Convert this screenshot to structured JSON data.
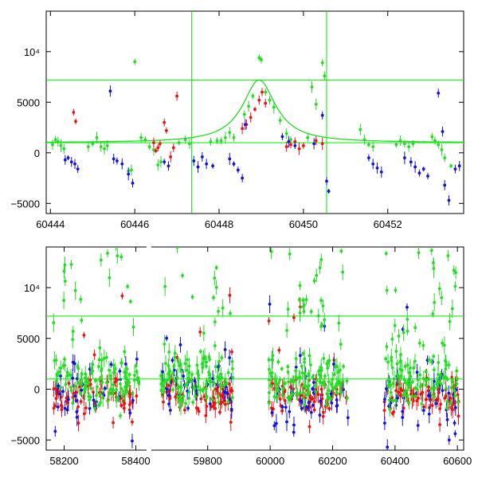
{
  "colors": {
    "background": "#ffffff",
    "frame": "#000000",
    "reference_lines": "#00ee00",
    "model_curve": "#22dd22",
    "series": {
      "red": "#ee1111",
      "green": "#22dd22",
      "blue": "#1111dd"
    }
  },
  "chart_data": [
    {
      "type": "scatter",
      "title": "",
      "xlabel": "",
      "ylabel": "",
      "xlim": [
        60443.9,
        60453.8
      ],
      "ylim": [
        -6000,
        14000
      ],
      "x_ticks": [
        60444,
        60446,
        60448,
        60450,
        60452
      ],
      "x_tick_labels": [
        "60444",
        "60446",
        "60448",
        "60450",
        "60452"
      ],
      "y_ticks": [
        -5000,
        0,
        5000,
        10000
      ],
      "y_tick_labels": [
        "−5000",
        "0",
        "5000",
        "10⁴"
      ],
      "horizontal_lines": [
        1000,
        7200
      ],
      "vertical_lines": [
        60447.35,
        60450.55
      ],
      "grid": false,
      "legend": "none",
      "model_curve": {
        "shape": "single-lens magnification peak",
        "t0": 60448.95,
        "baseline": 1000,
        "peak": 7200,
        "timescale": 0.48
      },
      "series": [
        {
          "color": "green",
          "points": [
            [
              60444.05,
              800
            ],
            [
              60444.12,
              1300
            ],
            [
              60444.18,
              1100
            ],
            [
              60444.25,
              700
            ],
            [
              60444.32,
              400
            ],
            [
              60444.9,
              600
            ],
            [
              60445.0,
              900
            ],
            [
              60445.1,
              1500
            ],
            [
              60445.2,
              600
            ],
            [
              60445.28,
              400
            ],
            [
              60445.35,
              700
            ],
            [
              60445.85,
              -1800
            ],
            [
              60445.92,
              -1700
            ],
            [
              60446.0,
              9000
            ],
            [
              60446.15,
              1500
            ],
            [
              60446.25,
              1300
            ],
            [
              60446.35,
              600
            ],
            [
              60446.45,
              300
            ],
            [
              60446.55,
              -1200
            ],
            [
              60446.62,
              -900
            ],
            [
              60447.05,
              1000
            ],
            [
              60447.2,
              1300
            ],
            [
              60447.3,
              900
            ],
            [
              60447.8,
              1100
            ],
            [
              60447.95,
              1200
            ],
            [
              60448.05,
              1200
            ],
            [
              60448.15,
              1500
            ],
            [
              60448.25,
              2000
            ],
            [
              60448.35,
              1500
            ],
            [
              60448.6,
              3800
            ],
            [
              60448.7,
              4600
            ],
            [
              60448.8,
              5600
            ],
            [
              60448.95,
              9400
            ],
            [
              60449.0,
              9200
            ],
            [
              60449.1,
              6000
            ],
            [
              60449.2,
              5200
            ],
            [
              60449.3,
              4500
            ],
            [
              60449.45,
              3200
            ],
            [
              60449.6,
              1900
            ],
            [
              60449.7,
              1300
            ],
            [
              60450.1,
              1500
            ],
            [
              60450.2,
              6500
            ],
            [
              60450.3,
              4800
            ],
            [
              60450.45,
              8900
            ],
            [
              60450.5,
              7600
            ],
            [
              60451.35,
              2300
            ],
            [
              60451.45,
              1300
            ],
            [
              60451.55,
              800
            ],
            [
              60451.65,
              600
            ],
            [
              60452.2,
              800
            ],
            [
              60452.3,
              1200
            ],
            [
              60452.4,
              900
            ],
            [
              60452.5,
              600
            ],
            [
              60452.6,
              900
            ],
            [
              60453.05,
              1600
            ],
            [
              60453.12,
              1200
            ],
            [
              60453.2,
              800
            ],
            [
              60453.28,
              300
            ],
            [
              60453.35,
              -500
            ],
            [
              60453.5,
              -1300
            ]
          ]
        },
        {
          "color": "red",
          "points": [
            [
              60444.55,
              4000
            ],
            [
              60444.6,
              3100
            ],
            [
              60446.45,
              1000
            ],
            [
              60446.5,
              200
            ],
            [
              60446.55,
              500
            ],
            [
              60446.6,
              900
            ],
            [
              60446.7,
              3000
            ],
            [
              60446.75,
              2200
            ],
            [
              60446.85,
              -400
            ],
            [
              60446.92,
              500
            ],
            [
              60447.0,
              5600
            ],
            [
              60448.55,
              2400
            ],
            [
              60448.65,
              2800
            ],
            [
              60448.75,
              3500
            ],
            [
              60448.85,
              4300
            ],
            [
              60448.95,
              5200
            ],
            [
              60449.02,
              6000
            ],
            [
              60449.1,
              4900
            ],
            [
              60449.6,
              600
            ],
            [
              60449.7,
              800
            ],
            [
              60449.8,
              1100
            ],
            [
              60449.9,
              400
            ],
            [
              60450.0,
              700
            ],
            [
              60450.3,
              1200
            ],
            [
              60450.45,
              900
            ]
          ]
        },
        {
          "color": "blue",
          "points": [
            [
              60444.35,
              -700
            ],
            [
              60444.42,
              -500
            ],
            [
              60444.5,
              -900
            ],
            [
              60444.58,
              -1100
            ],
            [
              60444.65,
              -1600
            ],
            [
              60445.42,
              6100
            ],
            [
              60445.5,
              -600
            ],
            [
              60445.58,
              -800
            ],
            [
              60445.7,
              -1100
            ],
            [
              60445.85,
              -2100
            ],
            [
              60445.95,
              -3000
            ],
            [
              60446.7,
              -900
            ],
            [
              60446.8,
              -1300
            ],
            [
              60447.4,
              -800
            ],
            [
              60447.5,
              -1400
            ],
            [
              60447.6,
              -400
            ],
            [
              60447.7,
              -1100
            ],
            [
              60447.85,
              -1300
            ],
            [
              60448.25,
              -600
            ],
            [
              60448.35,
              -1100
            ],
            [
              60448.45,
              -1700
            ],
            [
              60448.55,
              -2500
            ],
            [
              60448.62,
              2800
            ],
            [
              60449.5,
              1600
            ],
            [
              60449.65,
              1100
            ],
            [
              60449.8,
              700
            ],
            [
              60450.25,
              900
            ],
            [
              60450.45,
              3700
            ],
            [
              60450.55,
              -2800
            ],
            [
              60450.6,
              -3800
            ],
            [
              60451.55,
              -500
            ],
            [
              60451.65,
              -1100
            ],
            [
              60451.75,
              -1500
            ],
            [
              60451.85,
              -1900
            ],
            [
              60452.4,
              -500
            ],
            [
              60452.55,
              -900
            ],
            [
              60452.65,
              -1400
            ],
            [
              60452.75,
              -2000
            ],
            [
              60452.85,
              -1600
            ],
            [
              60452.95,
              -2300
            ],
            [
              60453.2,
              5900
            ],
            [
              60453.3,
              2100
            ],
            [
              60453.35,
              -3200
            ],
            [
              60453.45,
              -4700
            ],
            [
              60453.6,
              -1600
            ],
            [
              60453.7,
              -1300
            ]
          ]
        }
      ]
    },
    {
      "type": "scatter",
      "title": "",
      "xlabel": "",
      "ylabel": "",
      "x_axis_break": true,
      "ylim": [
        -6000,
        14000
      ],
      "y_ticks": [
        -5000,
        0,
        5000,
        10000
      ],
      "y_tick_labels": [
        "−5000",
        "0",
        "5000",
        "10⁴"
      ],
      "horizontal_lines": [
        1000,
        7200
      ],
      "grid": false,
      "legend": "none",
      "segments": [
        {
          "xlim": [
            58150,
            58430
          ],
          "ticks": [
            58200,
            58400
          ],
          "tick_labels": [
            "58200",
            "58400"
          ]
        },
        {
          "xlim": [
            59620,
            59900
          ],
          "ticks": [
            59800
          ],
          "tick_labels": [
            "59800"
          ]
        },
        {
          "xlim": [
            59900,
            60620
          ],
          "ticks": [
            60000,
            60200,
            60400,
            60600
          ],
          "tick_labels": [
            "60000",
            "60200",
            "60400",
            "60600"
          ]
        }
      ],
      "seasons": [
        {
          "x_range": [
            58170,
            58410
          ]
        },
        {
          "x_range": [
            59650,
            59880
          ]
        },
        {
          "x_range": [
            59995,
            60250
          ]
        },
        {
          "x_range": [
            60365,
            60605
          ]
        }
      ]
    }
  ]
}
